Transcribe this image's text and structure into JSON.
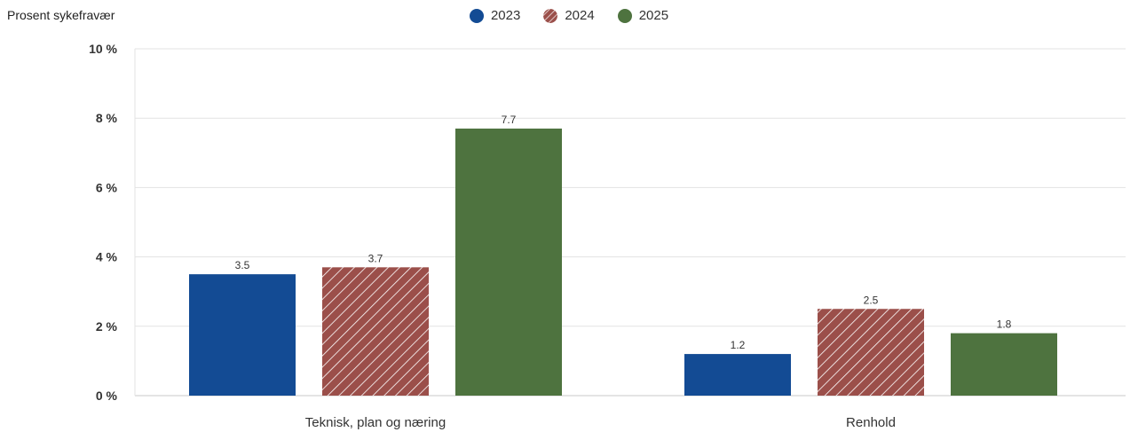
{
  "chart_data": {
    "type": "bar",
    "ylabel": "Prosent sykefravær",
    "categories": [
      "Teknisk, plan og næring",
      "Renhold"
    ],
    "series": [
      {
        "name": "2023",
        "values": [
          3.5,
          1.2
        ],
        "color": "#134b94",
        "pattern": "solid"
      },
      {
        "name": "2024",
        "values": [
          3.7,
          2.5
        ],
        "color": "#9b4f4a",
        "pattern": "hatched"
      },
      {
        "name": "2025",
        "values": [
          7.7,
          1.8
        ],
        "color": "#4e733f",
        "pattern": "solid"
      }
    ],
    "ylim": [
      0,
      10
    ],
    "yticks": [
      0,
      2,
      4,
      6,
      8,
      10
    ],
    "ytick_labels": [
      "0 %",
      "2 %",
      "4 %",
      "6 %",
      "8 %",
      "10 %"
    ],
    "data_labels": [
      [
        "3.5",
        "1.2"
      ],
      [
        "3.7",
        "2.5"
      ],
      [
        "7.7",
        "1.8"
      ]
    ],
    "grid": true,
    "legend_position": "top-center"
  }
}
